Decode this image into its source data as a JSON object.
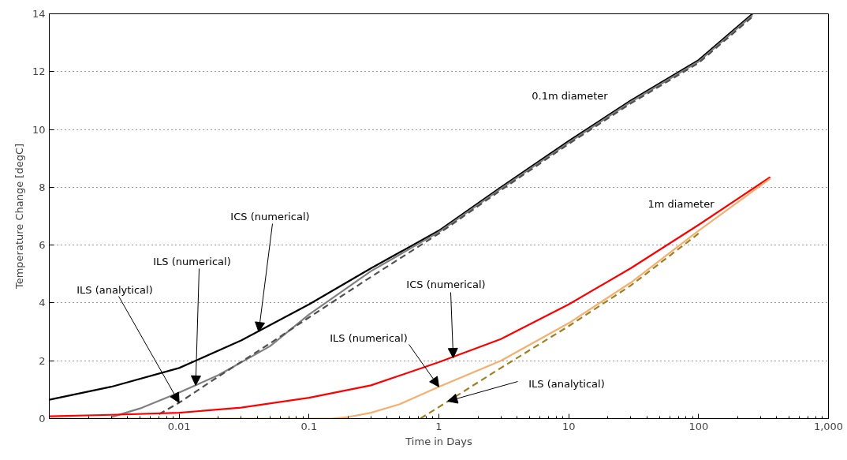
{
  "chart_data": {
    "type": "line",
    "xlabel": "Time in Days",
    "ylabel": "Temperature Change [degC]",
    "log": "x",
    "grid": "y",
    "xlim": [
      0.001,
      1000
    ],
    "ylim": [
      0,
      14
    ],
    "xticks": [
      0.01,
      0.1,
      1,
      10,
      100,
      {
        "value": 1000,
        "label": "1,000"
      }
    ],
    "yticks": [
      0,
      2,
      4,
      6,
      8,
      10,
      12,
      14
    ],
    "series": [
      {
        "color": "#000000",
        "line_style": "solid",
        "x": [
          0.001,
          0.003,
          0.01,
          0.03,
          0.1,
          0.3,
          1,
          3,
          10,
          30,
          100,
          260
        ],
        "values": [
          0.65,
          1.1,
          1.75,
          2.7,
          3.95,
          5.2,
          6.5,
          8.0,
          9.6,
          11.0,
          12.4,
          14.0
        ]
      },
      {
        "color": "#808080",
        "line_style": "solid",
        "x": [
          0.003,
          0.005,
          0.01,
          0.02,
          0.05,
          0.1,
          0.3,
          1,
          3,
          10,
          30,
          100,
          260
        ],
        "values": [
          0.05,
          0.35,
          0.9,
          1.5,
          2.5,
          3.6,
          5.1,
          6.45,
          7.95,
          9.55,
          10.95,
          12.35,
          13.95
        ]
      },
      {
        "color": "#505050",
        "line_style": "dashed",
        "x": [
          0.007,
          0.01,
          0.02,
          0.05,
          0.1,
          0.3,
          1,
          3,
          10,
          30,
          100,
          260
        ],
        "values": [
          0.15,
          0.55,
          1.45,
          2.6,
          3.5,
          4.9,
          6.4,
          7.9,
          9.5,
          10.9,
          12.3,
          13.9
        ]
      },
      {
        "color": "#ff0000",
        "line_style": "solid",
        "x": [
          0.001,
          0.003,
          0.01,
          0.03,
          0.1,
          0.3,
          1,
          3,
          10,
          30,
          100,
          356
        ],
        "values": [
          0.08,
          0.13,
          0.2,
          0.38,
          0.72,
          1.15,
          1.95,
          2.75,
          3.95,
          5.2,
          6.7,
          8.35
        ]
      },
      {
        "color": "#f5b070",
        "line_style": "solid",
        "x": [
          0.001,
          0.15,
          0.2,
          0.3,
          0.5,
          1,
          3,
          10,
          30,
          100,
          356
        ],
        "values": [
          0.0,
          0.0,
          0.05,
          0.2,
          0.5,
          1.1,
          2.0,
          3.3,
          4.7,
          6.5,
          8.3
        ]
      },
      {
        "color": "#a08020",
        "line_style": "dashed",
        "x": [
          0.72,
          1,
          3,
          10,
          30,
          100
        ],
        "values": [
          0.0,
          0.4,
          1.75,
          3.2,
          4.6,
          6.4
        ]
      }
    ],
    "annotations": [
      {
        "text": "ILS (analytical)",
        "x": 0.01,
        "y": 0.55
      },
      {
        "text": "ILS (numerical)",
        "x": 0.0134,
        "y": 1.15
      },
      {
        "text": "ICS (numerical)",
        "x": 0.041,
        "y": 3.0
      },
      "0.1m diameter",
      "1m diameter",
      {
        "text": "ICS (numerical)",
        "x": 1.29,
        "y": 2.1
      },
      {
        "text": "ILS (numerical)",
        "x": 1.0,
        "y": 1.1
      },
      {
        "text": "ILS (analytical)",
        "x": 1.17,
        "y": 0.6
      }
    ]
  }
}
